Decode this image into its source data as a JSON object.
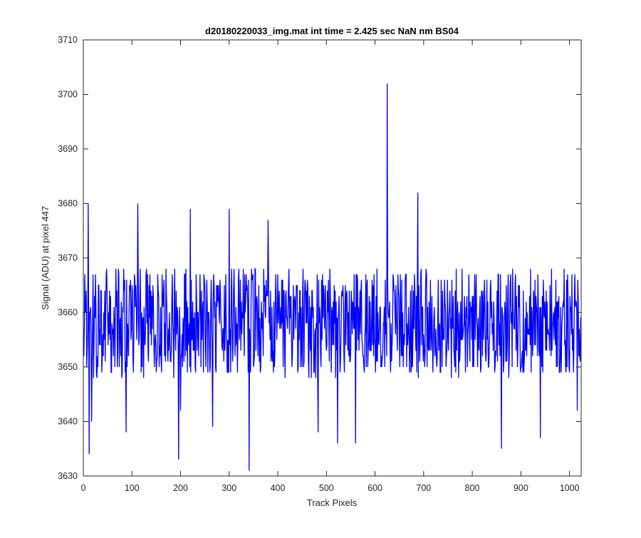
{
  "chart_data": {
    "type": "line",
    "title": "d20180220033_img.mat int time = 2.425 sec  NaN nm BS04",
    "xlabel": "Track Pixels",
    "ylabel": "Signal (ADU) at pixel 447",
    "xlim": [
      0,
      1024
    ],
    "ylim": [
      3630,
      3710
    ],
    "xticks": [
      0,
      100,
      200,
      300,
      400,
      500,
      600,
      700,
      800,
      900,
      1000
    ],
    "yticks": [
      3630,
      3640,
      3650,
      3660,
      3670,
      3680,
      3690,
      3700,
      3710
    ],
    "grid": false,
    "legend": "none",
    "line_color": "#0000ff",
    "series": [
      {
        "x_start": 1,
        "x_step": 1,
        "n_points": 1024,
        "mean": 3658,
        "std": 5.5,
        "noise": "approximately uniform random noise around the mean, sampled per pixel",
        "notable_points": [
          {
            "x": 10,
            "y": 3680
          },
          {
            "x": 12,
            "y": 3634
          },
          {
            "x": 17,
            "y": 3640
          },
          {
            "x": 88,
            "y": 3638
          },
          {
            "x": 112,
            "y": 3680
          },
          {
            "x": 196,
            "y": 3633
          },
          {
            "x": 200,
            "y": 3642
          },
          {
            "x": 220,
            "y": 3679
          },
          {
            "x": 266,
            "y": 3639
          },
          {
            "x": 300,
            "y": 3679
          },
          {
            "x": 341,
            "y": 3631
          },
          {
            "x": 380,
            "y": 3677
          },
          {
            "x": 483,
            "y": 3638
          },
          {
            "x": 523,
            "y": 3636
          },
          {
            "x": 560,
            "y": 3636
          },
          {
            "x": 625,
            "y": 3702
          },
          {
            "x": 688,
            "y": 3682
          },
          {
            "x": 860,
            "y": 3635
          },
          {
            "x": 940,
            "y": 3637
          },
          {
            "x": 1016,
            "y": 3642
          }
        ]
      }
    ]
  }
}
